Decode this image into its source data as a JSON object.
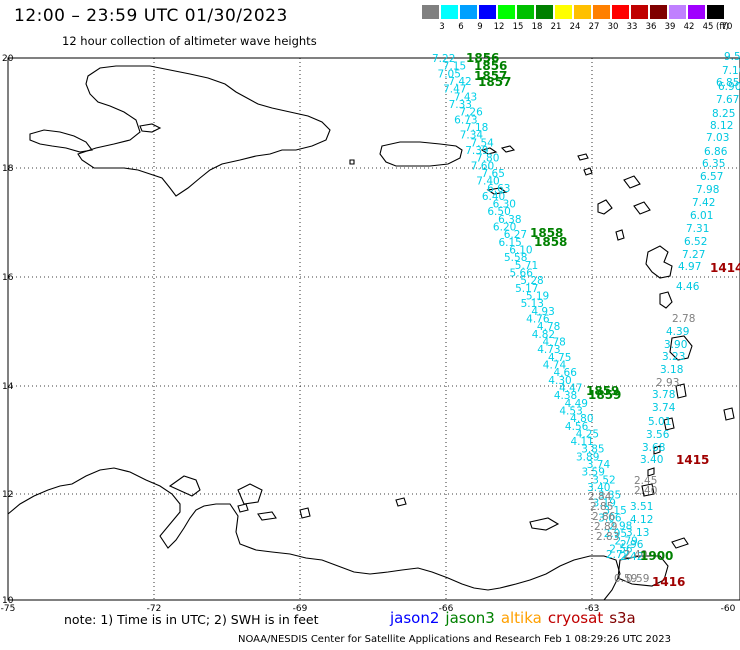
{
  "header": {
    "title": "12:00 – 23:59 UTC 01/30/2023",
    "subtitle": "12 hour collection of altimeter wave heights"
  },
  "colorbar": {
    "labels": [
      "3",
      "6",
      "9",
      "12",
      "15",
      "18",
      "21",
      "24",
      "27",
      "30",
      "33",
      "36",
      "39",
      "42",
      "45",
      "70"
    ],
    "unit": "(ft)",
    "colors": [
      "#808080",
      "#00ffff",
      "#00a0ff",
      "#0000ff",
      "#00ff00",
      "#00c000",
      "#008000",
      "#ffff00",
      "#ffc000",
      "#ff8000",
      "#ff0000",
      "#c00000",
      "#800000",
      "#c080ff",
      "#a000ff",
      "#000000"
    ]
  },
  "axes": {
    "lon_labels": [
      "-75",
      "-72",
      "-69",
      "-66",
      "-63",
      "-60"
    ],
    "lat_labels": [
      "20",
      "18",
      "16",
      "14",
      "12",
      "10"
    ]
  },
  "times": {
    "green": [
      {
        "id": "t1",
        "text": "1856"
      },
      {
        "id": "t2",
        "text": "1856"
      },
      {
        "id": "t3",
        "text": "1857"
      },
      {
        "id": "t4",
        "text": "1857"
      },
      {
        "id": "t5",
        "text": "1858"
      },
      {
        "id": "t6",
        "text": "1858"
      },
      {
        "id": "t7",
        "text": "1859"
      },
      {
        "id": "t8",
        "text": "1859"
      },
      {
        "id": "t9",
        "text": "1900"
      }
    ],
    "red": [
      {
        "id": "r1",
        "text": "1414"
      },
      {
        "id": "r2",
        "text": "1415"
      },
      {
        "id": "r3",
        "text": "1416"
      }
    ]
  },
  "track_main": {
    "values": [
      "7.22",
      "7.15",
      "7.05",
      "7.42",
      "7.47",
      "7.43",
      "7.33",
      "7.26",
      "6.73",
      "7.18",
      "7.34",
      "7.54",
      "7.39",
      "7.80",
      "7.60",
      "7.65",
      "7.40",
      "6.63",
      "6.40",
      "6.30",
      "6.50",
      "6.38",
      "6.20",
      "6.27",
      "6.15",
      "6.10",
      "5.58",
      "5.71",
      "5.66",
      "5.28",
      "5.17",
      "5.19",
      "5.13",
      "4.93",
      "4.76",
      "4.78",
      "4.82",
      "4.78",
      "4.73",
      "4.75",
      "4.74",
      "4.66",
      "4.30",
      "4.47",
      "4.38",
      "4.49",
      "4.53",
      "4.80",
      "4.56",
      "4.25",
      "4.11",
      "3.85",
      "3.89",
      "3.74",
      "3.59",
      "3.52",
      "3.40",
      "3.35",
      "3.19",
      "3.15",
      "3.06",
      "2.98",
      "2.95",
      "2.79",
      "2.56",
      "2.42"
    ],
    "gray_values": [
      "2.84",
      "2.85",
      "2.86",
      "2.89",
      "2.83"
    ]
  },
  "track_east": {
    "values": [
      "9.5",
      "7.10",
      "6.85",
      "6.90",
      "7.67",
      "8.25",
      "8.12",
      "7.03",
      "6.86",
      "6.35",
      "6.57",
      "7.98",
      "7.42",
      "6.01",
      "7.31",
      "6.52",
      "7.27",
      "4.97",
      "4.46",
      "2.78",
      "4.39",
      "3.90",
      "3.23",
      "3.18",
      "2.93",
      "3.78",
      "3.74",
      "5.01",
      "3.56",
      "3.68",
      "3.40",
      "2.45",
      "2.40",
      "3.51",
      "4.12",
      "3.13",
      "2.96",
      "2.72",
      "2.40",
      "0.59",
      "0.59"
    ]
  },
  "notes": {
    "bottom_note": "note:  1) Time is in UTC;  2) SWH is in feet",
    "credit": "NOAA/NESDIS Center for Satellite Applications and Research   Feb  1 08:29:26 UTC 2023"
  },
  "legend": {
    "sats": [
      {
        "name": "jason2",
        "color": "#0000ff"
      },
      {
        "name": "jason3",
        "color": "#008000"
      },
      {
        "name": "altika",
        "color": "#ffa000"
      },
      {
        "name": "cryosat",
        "color": "#c00000"
      },
      {
        "name": "s3a",
        "color": "#800000"
      }
    ]
  }
}
